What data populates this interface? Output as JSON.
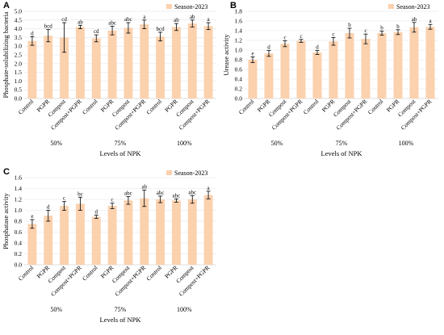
{
  "colors": {
    "bar": "#fbd1ae",
    "axis": "#bfbfbf",
    "grid": "#e6e6e6",
    "error": "#000000"
  },
  "chart_data": [
    {
      "panel": "A",
      "type": "bar",
      "legend": "Season-2023",
      "legend_position": "top-right",
      "ylabel": "Phosphate-solubilizing bacteria",
      "xlabel": "Levels of NPK",
      "ylim": [
        0,
        5
      ],
      "yticks": [
        "0.0",
        "0.5",
        "1.0",
        "1.5",
        "2.0",
        "2.5",
        "3.0",
        "3.5",
        "4.0",
        "4.5",
        "5.0"
      ],
      "grid": true,
      "groups": [
        "50%",
        "75%",
        "100%"
      ],
      "categories": [
        "Control",
        "PGPR",
        "Compost",
        "Compost+PGPR",
        "Control",
        "PGPR",
        "Compost",
        "Compost+PGPR",
        "Control",
        "PGPR",
        "Compost",
        "Compost+PGPR"
      ],
      "values": [
        3.3,
        3.6,
        3.5,
        4.1,
        3.45,
        3.9,
        4.05,
        4.25,
        3.55,
        4.1,
        4.3,
        4.15
      ],
      "errors": [
        0.25,
        0.35,
        0.85,
        0.1,
        0.2,
        0.25,
        0.3,
        0.25,
        0.25,
        0.2,
        0.2,
        0.2
      ],
      "labels": [
        "d",
        "bcd",
        "cd",
        "ab",
        "cd",
        "abc",
        "abc",
        "a",
        "bcd",
        "ab",
        "ab",
        "a"
      ]
    },
    {
      "panel": "B",
      "type": "bar",
      "legend": "Season-2023",
      "legend_position": "top-right",
      "ylabel": "Urease activity",
      "xlabel": "Levels of NPK",
      "ylim": [
        0,
        1.8
      ],
      "yticks": [
        "0.0",
        "0.2",
        "0.4",
        "0.6",
        "0.8",
        "1.0",
        "1.2",
        "1.4",
        "1.6",
        "1.8"
      ],
      "grid": true,
      "groups": [
        "50%",
        "75%",
        "100%"
      ],
      "categories": [
        "Control",
        "PGPR",
        "Compost",
        "Compost+PGPR",
        "Control",
        "PGPR",
        "Compost",
        "Compost+PGPR",
        "Control",
        "PGPR",
        "Compost",
        "Compost+PGPR"
      ],
      "values": [
        0.8,
        0.93,
        1.13,
        1.19,
        0.95,
        1.18,
        1.35,
        1.23,
        1.35,
        1.37,
        1.47,
        1.48
      ],
      "errors": [
        0.06,
        0.06,
        0.06,
        0.03,
        0.04,
        0.08,
        0.1,
        0.1,
        0.04,
        0.05,
        0.1,
        0.05
      ],
      "labels": [
        "e",
        "d",
        "c",
        "c",
        "d",
        "c",
        "b",
        "c",
        "b",
        "b",
        "ab",
        "a"
      ]
    },
    {
      "panel": "C",
      "type": "bar",
      "legend": "Season-2023",
      "legend_position": "top-right",
      "ylabel": "Phosphatase activity",
      "xlabel": "Levels of NPK",
      "ylim": [
        0,
        1.6
      ],
      "yticks": [
        "0.0",
        "0.2",
        "0.4",
        "0.6",
        "0.8",
        "1.0",
        "1.2",
        "1.4",
        "1.6"
      ],
      "grid": true,
      "groups": [
        "50%",
        "75%",
        "100%"
      ],
      "categories": [
        "Control",
        "PGPR",
        "Compost",
        "Compost+PGPR",
        "Control",
        "PGPR",
        "Compost",
        "Compost+PGPR",
        "Control",
        "PGPR",
        "Compost",
        "Compost+PGPR"
      ],
      "values": [
        0.75,
        0.9,
        1.08,
        1.12,
        0.88,
        1.08,
        1.18,
        1.22,
        1.2,
        1.18,
        1.2,
        1.28
      ],
      "errors": [
        0.08,
        0.1,
        0.08,
        0.12,
        0.03,
        0.05,
        0.07,
        0.15,
        0.06,
        0.03,
        0.07,
        0.07
      ],
      "labels": [
        "e",
        "d",
        "c",
        "bc",
        "d",
        "c",
        "abc",
        "ab",
        "abc",
        "abc",
        "abc",
        "a"
      ]
    }
  ]
}
